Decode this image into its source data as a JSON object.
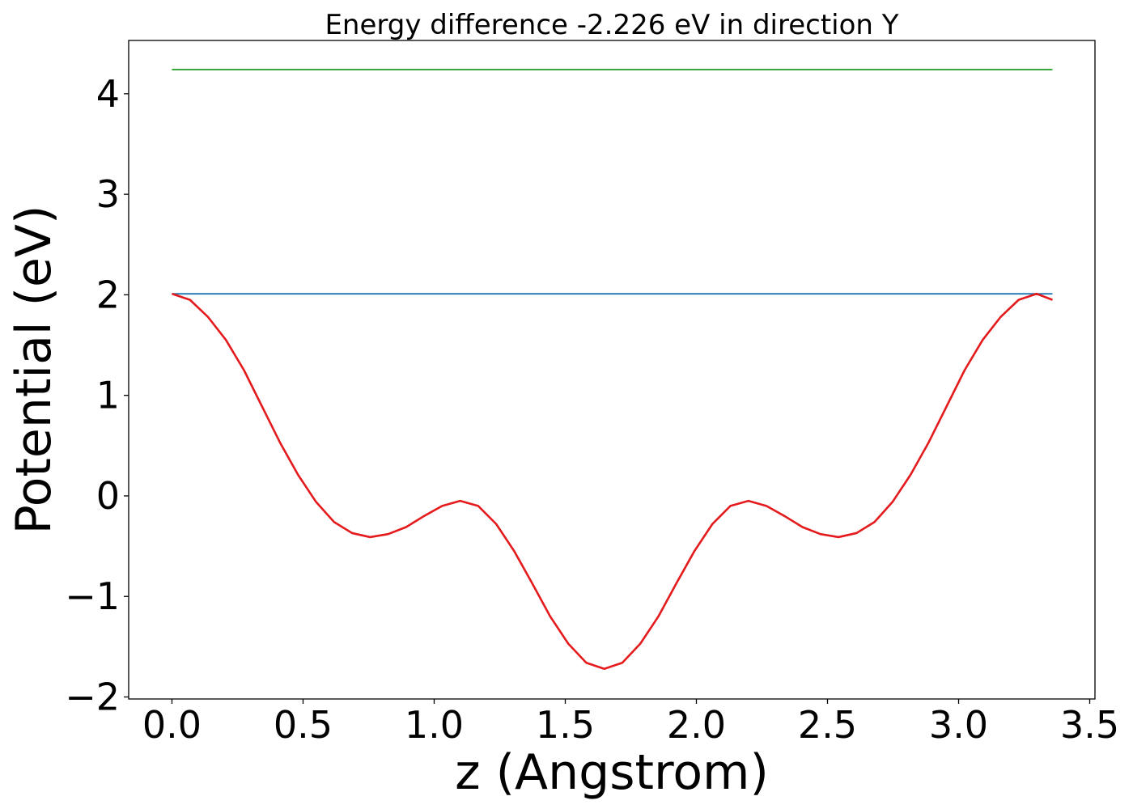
{
  "chart_data": {
    "type": "line",
    "title": "Energy difference -2.226 eV in direction Y",
    "xlabel": "z (Angstrom)",
    "ylabel": "Potential (eV)",
    "xlim": [
      -0.165,
      3.52
    ],
    "ylim": [
      -2.02,
      4.53
    ],
    "xticks": [
      0.0,
      0.5,
      1.0,
      1.5,
      2.0,
      2.5,
      3.0,
      3.5
    ],
    "xtick_labels": [
      "0.0",
      "0.5",
      "1.0",
      "1.5",
      "2.0",
      "2.5",
      "3.0",
      "3.5"
    ],
    "yticks": [
      -2,
      -1,
      0,
      1,
      2,
      3,
      4
    ],
    "ytick_labels": [
      "−2",
      "−1",
      "0",
      "1",
      "2",
      "3",
      "4"
    ],
    "grid": false,
    "series": [
      {
        "color": "#2ca02c",
        "x": [
          0.0,
          3.358
        ],
        "y": [
          4.24,
          4.24
        ]
      },
      {
        "color": "#1f77b4",
        "x": [
          0.0,
          3.358
        ],
        "y": [
          2.01,
          2.01
        ]
      },
      {
        "color": "#e41a1c",
        "x": [
          0.0,
          0.0687,
          0.1374,
          0.2061,
          0.2748,
          0.3435,
          0.4122,
          0.4809,
          0.5496,
          0.6183,
          0.687,
          0.7557,
          0.8244,
          0.8931,
          0.9618,
          1.0305,
          1.0992,
          1.1679,
          1.2366,
          1.3053,
          1.374,
          1.4427,
          1.5114,
          1.5801,
          1.6488,
          1.7175,
          1.7862,
          1.8549,
          1.9236,
          1.9923,
          2.061,
          2.1297,
          2.1984,
          2.2671,
          2.3358,
          2.4045,
          2.4732,
          2.5419,
          2.6106,
          2.6793,
          2.748,
          2.8167,
          2.8854,
          2.9541,
          3.0228,
          3.0915,
          3.1602,
          3.2289,
          3.2976,
          3.358
        ],
        "y": [
          2.01,
          1.95,
          1.78,
          1.55,
          1.25,
          0.89,
          0.53,
          0.21,
          -0.06,
          -0.26,
          -0.37,
          -0.41,
          -0.38,
          -0.31,
          -0.2,
          -0.1,
          -0.05,
          -0.1,
          -0.28,
          -0.55,
          -0.87,
          -1.2,
          -1.47,
          -1.66,
          -1.72,
          -1.66,
          -1.47,
          -1.2,
          -0.87,
          -0.55,
          -0.28,
          -0.1,
          -0.05,
          -0.1,
          -0.2,
          -0.31,
          -0.38,
          -0.41,
          -0.37,
          -0.26,
          -0.06,
          0.21,
          0.53,
          0.89,
          1.25,
          1.55,
          1.78,
          1.95,
          2.01,
          1.95
        ]
      }
    ]
  }
}
